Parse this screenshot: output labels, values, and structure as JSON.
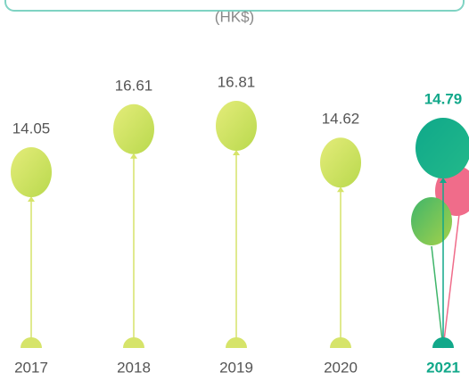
{
  "chart_data": {
    "type": "balloon",
    "subtitle": "(HK$)",
    "categories": [
      "2017",
      "2018",
      "2019",
      "2020",
      "2021"
    ],
    "values": [
      14.05,
      16.61,
      16.81,
      14.62,
      14.79
    ],
    "color": "#d6e46a",
    "label_color": "#555555",
    "highlight_index": 4,
    "highlight_color": "#12a88a"
  }
}
